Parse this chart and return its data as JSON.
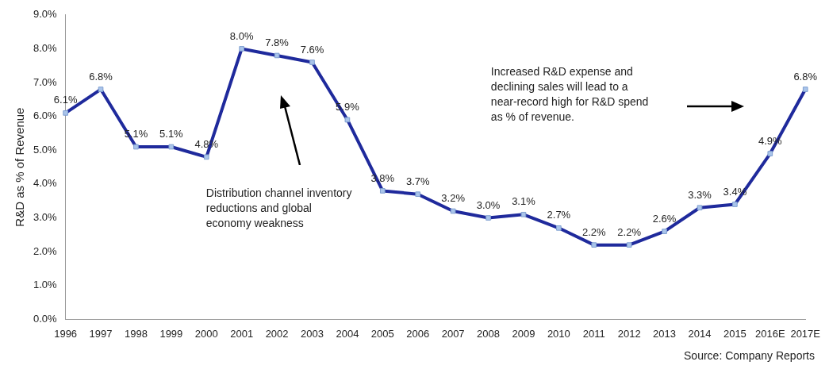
{
  "chart_data": {
    "type": "line",
    "ylabel": "R&D as % of Revenue",
    "categories": [
      "1996",
      "1997",
      "1998",
      "1999",
      "2000",
      "2001",
      "2002",
      "2003",
      "2004",
      "2005",
      "2006",
      "2007",
      "2008",
      "2009",
      "2010",
      "2011",
      "2012",
      "2013",
      "2014",
      "2015",
      "2016E",
      "2017E"
    ],
    "series": [
      {
        "color": "#1f2a9c",
        "values": [
          6.1,
          6.8,
          5.1,
          5.1,
          4.8,
          8.0,
          7.8,
          7.6,
          5.9,
          3.8,
          3.7,
          3.2,
          3.0,
          3.1,
          2.7,
          2.2,
          2.2,
          2.6,
          3.3,
          3.4,
          4.9,
          6.8
        ],
        "value_labels": [
          "6.1%",
          "6.8%",
          "5.1%",
          "5.1%",
          "4.8%",
          "8.0%",
          "7.8%",
          "7.6%",
          "5.9%",
          "3.8%",
          "3.7%",
          "3.2%",
          "3.0%",
          "3.1%",
          "2.7%",
          "2.2%",
          "2.2%",
          "2.6%",
          "3.3%",
          "3.4%",
          "4.9%",
          "6.8%"
        ]
      }
    ],
    "ylim": [
      0,
      9
    ],
    "yticks": [
      {
        "value": 0,
        "label": "0.0%"
      },
      {
        "value": 1,
        "label": "1.0%"
      },
      {
        "value": 2,
        "label": "2.0%"
      },
      {
        "value": 3,
        "label": "3.0%"
      },
      {
        "value": 4,
        "label": "4.0%"
      },
      {
        "value": 5,
        "label": "5.0%"
      },
      {
        "value": 6,
        "label": "6.0%"
      },
      {
        "value": 7,
        "label": "7.0%"
      },
      {
        "value": 8,
        "label": "8.0%"
      },
      {
        "value": 9,
        "label": "9.0%"
      }
    ],
    "marker": "square",
    "line_style": "solid",
    "annotations": [
      "Distribution channel inventory reductions and global economy weakness",
      "Increased R&D expense and declining sales will lead to a near-record high for R&D spend as % of revenue.",
      "Source: Company Reports"
    ]
  }
}
